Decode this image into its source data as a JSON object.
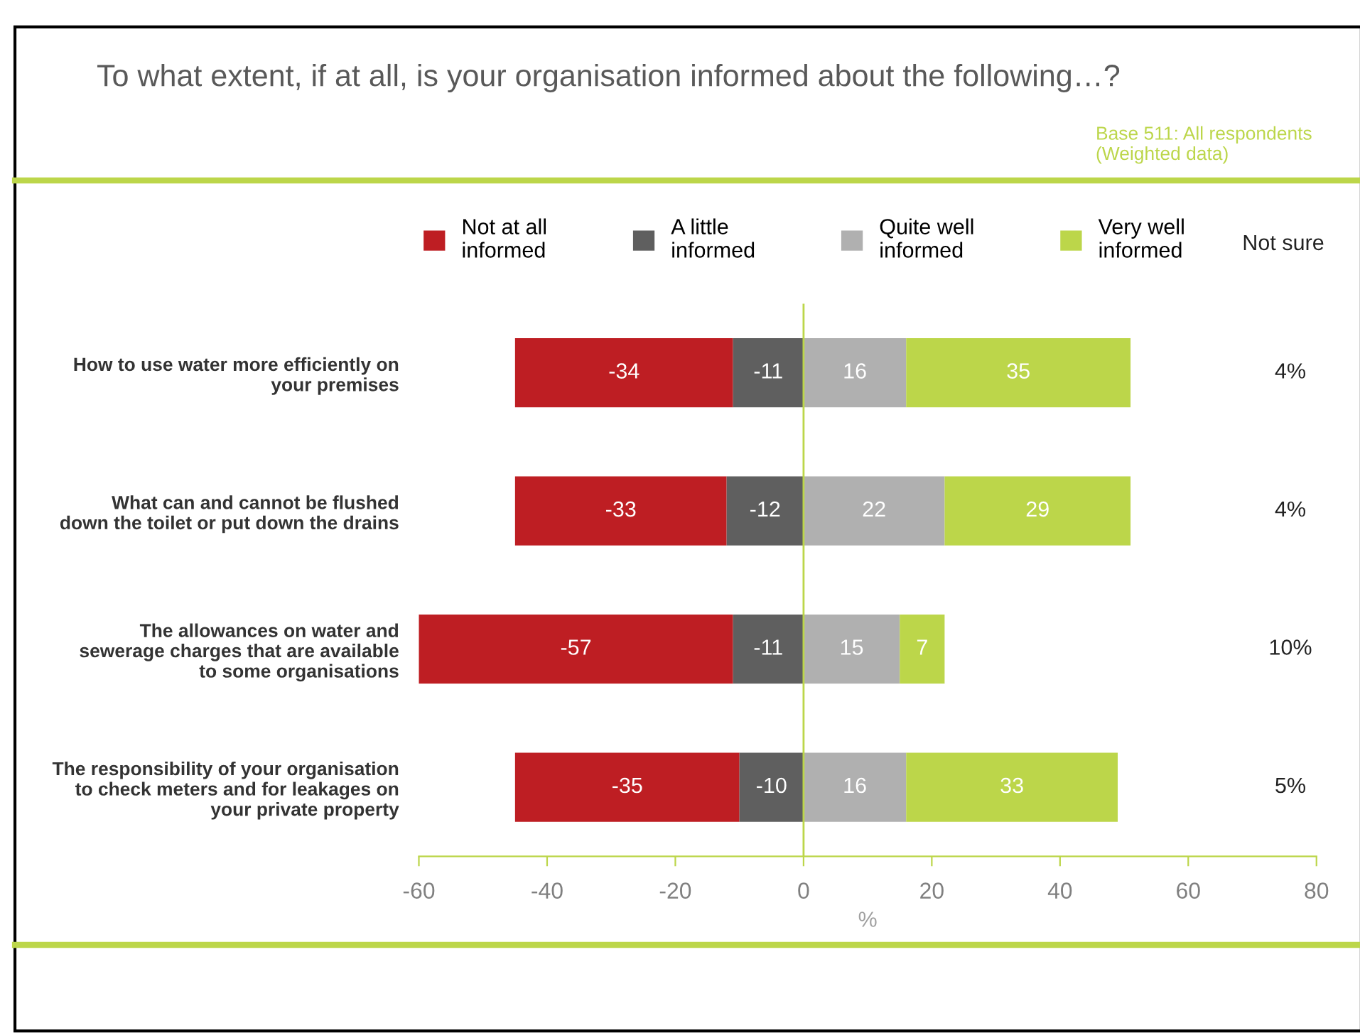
{
  "chart_data": {
    "type": "bar",
    "orientation": "horizontal",
    "title": "To what extent, if at all, is your organisation informed about the following…?",
    "xlabel": "%",
    "categories": [
      "How to use water more efficiently on\nyour premises",
      "What can and cannot be flushed\ndown the toilet or put down the drains",
      "The allowances on water and\nsewerage charges that are available\nto some organisations",
      "The responsibility of your organisation\nto check meters and for leakages on\nyour private property"
    ],
    "series": [
      {
        "name": "Not at all\ninformed",
        "color": "#be1e23",
        "values": [
          -34,
          -33,
          -57,
          -35
        ],
        "base": [
          -11,
          -12,
          -11,
          -10
        ]
      },
      {
        "name": "A little\ninformed",
        "color": "#5f5f5f",
        "values": [
          -11,
          -12,
          -11,
          -10
        ],
        "base": [
          0,
          0,
          0,
          0
        ]
      },
      {
        "name": "Quite well\ninformed",
        "color": "#b0b0b0",
        "values": [
          16,
          22,
          15,
          16
        ],
        "base": [
          0,
          0,
          0,
          0
        ]
      },
      {
        "name": "Very well\ninformed",
        "color": "#bcd64a",
        "values": [
          35,
          29,
          7,
          33
        ],
        "base": [
          16,
          22,
          15,
          16
        ]
      }
    ],
    "xlim": [
      -60,
      80
    ],
    "xticks": [
      -60,
      -40,
      -20,
      0,
      20,
      40,
      60,
      80
    ],
    "data_labels": true,
    "grid": false,
    "legend": "top",
    "annotations": [
      "Base 511: All respondents\n(Weighted data)",
      "Not sure",
      "4%",
      "4%",
      "10%",
      "5%"
    ],
    "ref_lines": [
      {
        "axis": "x",
        "value": 0,
        "color": "#bcd64a"
      }
    ]
  }
}
